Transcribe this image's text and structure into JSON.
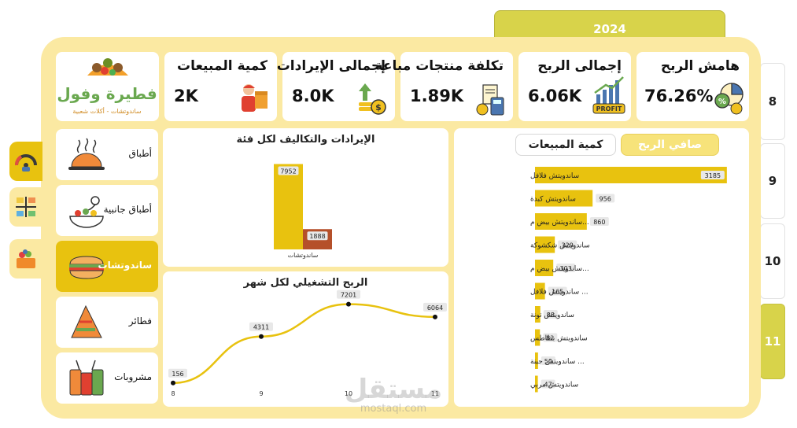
{
  "year": "2024",
  "months": [
    {
      "label": "8",
      "active": false
    },
    {
      "label": "9",
      "active": false
    },
    {
      "label": "10",
      "active": false
    },
    {
      "label": "11",
      "active": true
    }
  ],
  "logo": {
    "name": "فطيرة وفول",
    "tagline": "ساندوتشات - أكلات شعبية"
  },
  "kpis": {
    "sales_qty": {
      "title": "كمية المبيعات",
      "value": "2K"
    },
    "revenue": {
      "title": "إجمالى الإيرادات",
      "value": "8.0K"
    },
    "cost": {
      "title": "تكلفة منتجات مباعة",
      "value": "1.89K"
    },
    "profit": {
      "title": "إجمالى الربح",
      "value": "6.06K",
      "icon_text": "PROFIT"
    },
    "margin": {
      "title": "هامش الربح",
      "value": "76.26%",
      "icon_text": "%"
    }
  },
  "categories": [
    {
      "label": "أطباق",
      "icon": "platter-icon",
      "active": false
    },
    {
      "label": "أطباق جانبية",
      "icon": "side-dish-icon",
      "active": false
    },
    {
      "label": "ساندوتشات",
      "icon": "sandwich-icon",
      "active": true
    },
    {
      "label": "فطائر",
      "icon": "pie-slice-icon",
      "active": false
    },
    {
      "label": "مشروبات",
      "icon": "drinks-icon",
      "active": false
    }
  ],
  "toggles": {
    "net_profit": "صافي الربح",
    "sales_qty": "كمية المبيعات"
  },
  "colors": {
    "accent": "#e8c20f",
    "cost": "#b5502a",
    "panel": "#fbe9a2",
    "line": "#e8c20f"
  },
  "chart_data": [
    {
      "type": "bar",
      "title": "الإيرادات والتكاليف لكل فئة",
      "categories": [
        "ساندوتشات"
      ],
      "series": [
        {
          "values": [
            7952
          ],
          "color": "#e8c20f"
        },
        {
          "values": [
            1888
          ],
          "color": "#b5502a"
        }
      ],
      "ylim": [
        0,
        8500
      ]
    },
    {
      "type": "line",
      "title": "الربح التشغيلي لكل شهر",
      "x": [
        "8",
        "9",
        "10",
        "11"
      ],
      "values": [
        156,
        4311,
        7201,
        6064
      ],
      "ylim": [
        0,
        7600
      ]
    },
    {
      "type": "bar",
      "orientation": "horizontal",
      "categories": [
        "ساندويتش فلافل",
        "ساندويتش كبدة",
        "...ساندويتش بيض م",
        "ساندويتش شكشوكة",
        "...ساندويتش بيض م",
        "... ساندويتش فلافل",
        "ساندويتش تونة",
        "ساندويتش بطاطس",
        "... ساندويتش جبنة",
        "ساندويتش مربي"
      ],
      "values": [
        3185,
        956,
        860,
        329,
        303,
        165,
        88,
        82,
        50,
        47
      ],
      "xlim": [
        0,
        3200
      ]
    }
  ],
  "watermark": {
    "big": "مستقل",
    "small": "mostaql.com"
  }
}
